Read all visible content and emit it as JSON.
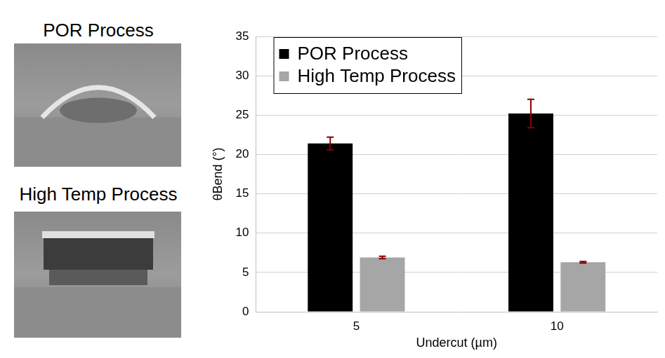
{
  "chart_data": {
    "type": "bar",
    "x_label": "Undercut (µm)",
    "y_label": "θBend (°)",
    "categories": [
      "5",
      "10"
    ],
    "series": [
      {
        "name": "POR Process",
        "color": "#000000",
        "values": [
          21.4,
          25.2
        ],
        "errors": [
          0.8,
          1.8
        ]
      },
      {
        "name": "High Temp Process",
        "color": "#a6a6a6",
        "values": [
          6.9,
          6.3
        ],
        "errors": [
          0.15,
          0.1
        ]
      }
    ],
    "ylim": [
      0,
      35
    ],
    "yticks": [
      0,
      5,
      10,
      15,
      20,
      25,
      30,
      35
    ],
    "grid": true,
    "legend": "upper left"
  },
  "panels": [
    {
      "title": "POR Process"
    },
    {
      "title": "High Temp Process"
    }
  ]
}
